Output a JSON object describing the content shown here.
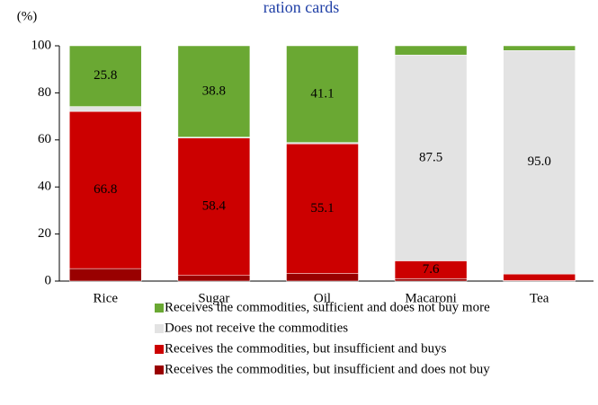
{
  "chart_data": {
    "type": "stacked-bar",
    "title": "ration cards",
    "y_unit": "(%)",
    "categories": [
      "Rice",
      "Sugar",
      "Oil",
      "Macaroni",
      "Tea"
    ],
    "series": [
      {
        "name": "Receives the commodities, but insufficient and does not buy",
        "color": "#990000",
        "values": [
          5.3,
          2.4,
          3.2,
          1.0,
          0.2
        ]
      },
      {
        "name": "Receives the commodities, but insufficient and buys",
        "color": "#cc0000",
        "values": [
          66.8,
          58.4,
          55.1,
          7.6,
          2.8
        ],
        "value_labels": [
          "66.8",
          "58.4",
          "55.1",
          "7.6",
          null
        ]
      },
      {
        "name": "Does not receive the commodities",
        "color": "#e3e3e3",
        "values": [
          2.1,
          0.4,
          0.6,
          87.5,
          95.0
        ],
        "value_labels": [
          null,
          null,
          null,
          "87.5",
          "95.0"
        ]
      },
      {
        "name": "Receives the commodities, sufficient and does not buy more",
        "color": "#6aa833",
        "values": [
          25.8,
          38.8,
          41.1,
          3.9,
          2.0
        ],
        "value_labels": [
          "25.8",
          "38.8",
          "41.1",
          null,
          null
        ]
      }
    ],
    "ylim": [
      0,
      100
    ],
    "yticks": [
      0,
      20,
      40,
      60,
      80,
      100
    ],
    "grid": false
  }
}
